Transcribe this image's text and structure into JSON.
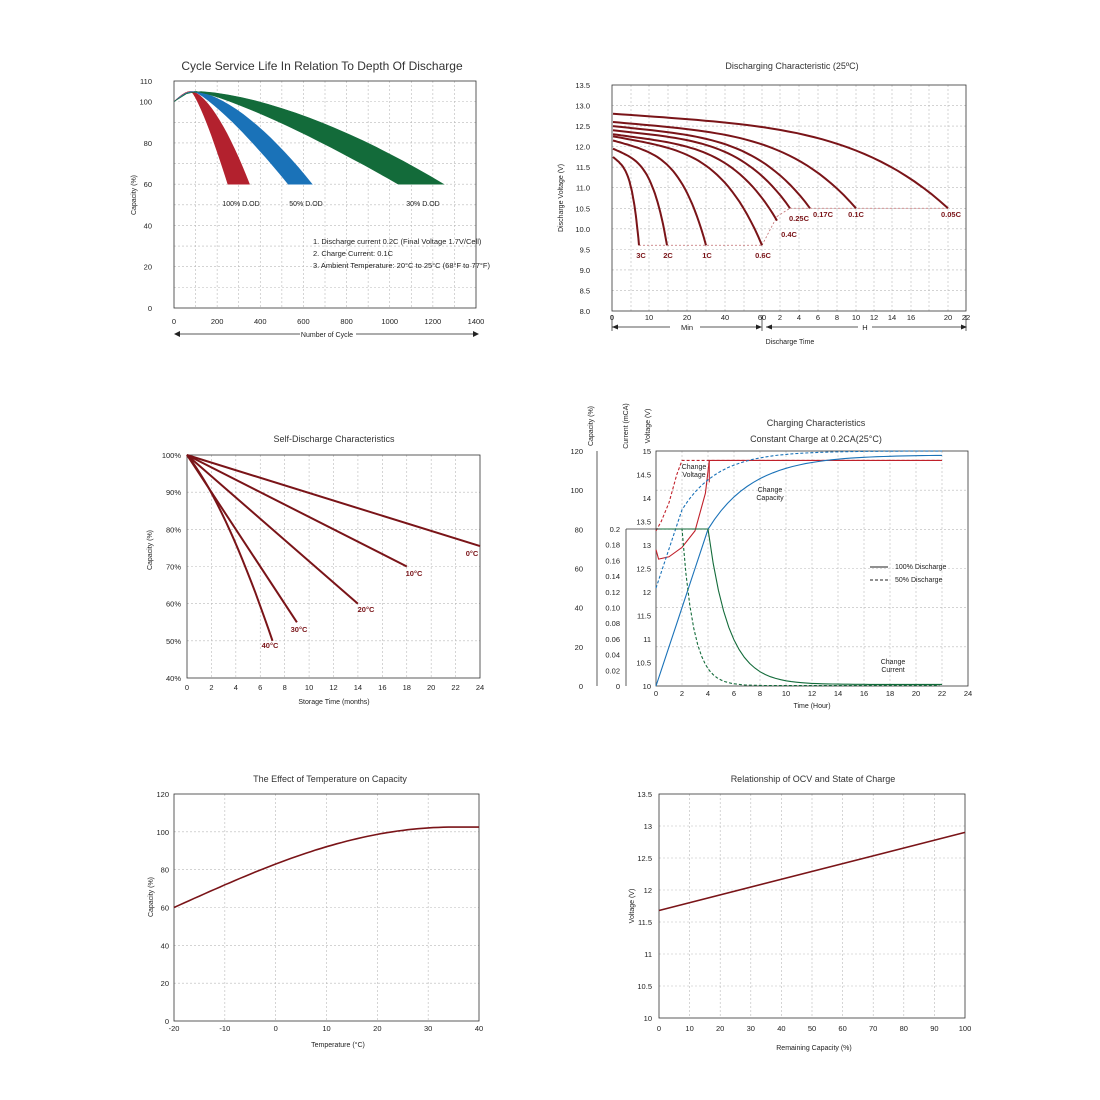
{
  "chart_data": [
    {
      "id": "cycle",
      "type": "area",
      "title": "Cycle Service Life In Relation To Depth Of Discharge",
      "xlabel": "Number of Cycle",
      "ylabel": "Capacity (%)",
      "xlim": [
        0,
        1400
      ],
      "ylim": [
        0,
        110
      ],
      "xticks": [
        0,
        200,
        400,
        600,
        800,
        1000,
        1200,
        1400
      ],
      "yticks": [
        0,
        20,
        40,
        60,
        80,
        100,
        110
      ],
      "notes": [
        "1.  Discharge current 0.2C (Final Voltage 1.7V/Cell)",
        "2.  Charge Current: 0.1C",
        "3.  Ambient Temperature: 20°C to 25°C (68°F to 77°F)"
      ],
      "series": [
        {
          "name": "100% D.OD",
          "color": "#b3212e",
          "band_end": [
            250,
            350
          ]
        },
        {
          "name": "50% D.OD",
          "color": "#1a72b8",
          "band_end": [
            530,
            640
          ]
        },
        {
          "name": "30% D.OD",
          "color": "#136b3a",
          "band_end": [
            1040,
            1250
          ]
        }
      ]
    },
    {
      "id": "discharge",
      "type": "line",
      "title": "Discharging Characteristic (25ºC)",
      "xlabel": "Discharge Time",
      "ylabel": "Discharge Voltage (V)",
      "ylim": [
        8.0,
        13.5
      ],
      "yticks": [
        "8.0",
        "8.5",
        "9.0",
        "9.5",
        "10.0",
        "10.5",
        "11.0",
        "11.5",
        "12.0",
        "12.5",
        "13.0",
        "13.5"
      ],
      "xticks_min": [
        "0",
        "10",
        "20",
        "40",
        "60"
      ],
      "xticks_h": [
        "2",
        "4",
        "6",
        "8",
        "10",
        "12",
        "14",
        "16",
        "20",
        "22"
      ],
      "xunit_min": "Min",
      "xunit_h": "H",
      "color": "#7a1418",
      "series": [
        {
          "name": "3C",
          "start_v": 11.75,
          "end_min": 7,
          "end_v": 9.6
        },
        {
          "name": "2C",
          "start_v": 11.95,
          "end_min": 14,
          "end_v": 9.6
        },
        {
          "name": "1C",
          "start_v": 12.15,
          "end_min": 30,
          "end_v": 9.6
        },
        {
          "name": "0.6C",
          "start_v": 12.25,
          "end_min": 58,
          "end_v": 9.6
        },
        {
          "name": "0.4C",
          "start_v": 12.3,
          "end_h": 2.3,
          "end_v": 10.2
        },
        {
          "name": "0.25C",
          "start_v": 12.4,
          "end_h": 3.3,
          "end_v": 10.5
        },
        {
          "name": "0.17C",
          "start_v": 12.5,
          "end_h": 5.2,
          "end_v": 10.5
        },
        {
          "name": "0.1C",
          "start_v": 12.6,
          "end_h": 10,
          "end_v": 10.5
        },
        {
          "name": "0.05C",
          "start_v": 12.8,
          "end_h": 20,
          "end_v": 10.5
        }
      ]
    },
    {
      "id": "selfdischarge",
      "type": "line",
      "title": "Self-Discharge Characteristics",
      "xlabel": "Storage Time (months)",
      "ylabel": "Capacity (%)",
      "xlim": [
        0,
        24
      ],
      "ylim": [
        40,
        100
      ],
      "xticks": [
        0,
        2,
        4,
        6,
        8,
        10,
        12,
        14,
        16,
        18,
        20,
        22,
        24
      ],
      "yticks": [
        "40%",
        "50%",
        "60%",
        "70%",
        "80%",
        "90%",
        "100%"
      ],
      "color": "#7a1418",
      "series": [
        {
          "name": "0°C",
          "x": [
            0,
            24
          ],
          "y": [
            100,
            75.5
          ]
        },
        {
          "name": "10°C",
          "x": [
            0,
            18
          ],
          "y": [
            100,
            70
          ]
        },
        {
          "name": "20°C",
          "x": [
            0,
            14
          ],
          "y": [
            100,
            60
          ]
        },
        {
          "name": "30°C",
          "x": [
            0,
            9
          ],
          "y": [
            100,
            55
          ]
        },
        {
          "name": "40°C",
          "x": [
            0,
            4,
            7
          ],
          "y": [
            100,
            70,
            50
          ]
        }
      ]
    },
    {
      "id": "charging",
      "type": "line",
      "title": "Charging Characteristics",
      "subtitle": "Constant Charge at 0.2CA(25°C)",
      "xlabel": "Time (Hour)",
      "ylabel_capacity": "Capacity (%)",
      "ylabel_current": "Current (mCA)",
      "ylabel_voltage": "Voltage (V)",
      "xticks": [
        0,
        2,
        4,
        6,
        8,
        10,
        12,
        14,
        16,
        18,
        20,
        22,
        24
      ],
      "capacity_ticks": [
        0,
        20,
        40,
        60,
        80,
        100,
        120
      ],
      "current_ticks": [
        "0",
        "0.02",
        "0.04",
        "0.06",
        "0.08",
        "0.10",
        "0.12",
        "0.14",
        "0.16",
        "0.18",
        "0.2"
      ],
      "voltage_ticks": [
        "10",
        "10.5",
        "11",
        "11.5",
        "12",
        "12.5",
        "13",
        "13.5",
        "14",
        "14.5",
        "15"
      ],
      "legend": [
        "100% Discharge",
        "50% Discharge"
      ],
      "annotations": [
        {
          "text": [
            "Change",
            "Voltage"
          ],
          "color": "#c0202a"
        },
        {
          "text": [
            "Change",
            "Capacity"
          ],
          "color": "#1a72b8"
        },
        {
          "text": [
            "Change",
            "Current"
          ],
          "color": "#136b3a"
        }
      ],
      "colors": {
        "voltage": "#c0202a",
        "capacity": "#1a72b8",
        "current": "#136b3a"
      }
    },
    {
      "id": "temperature",
      "type": "line",
      "title": "The Effect of Temperature on Capacity",
      "xlabel": "Temperature (°C)",
      "ylabel": "Capacity (%)",
      "xlim": [
        -20,
        40
      ],
      "ylim": [
        0,
        120
      ],
      "xticks": [
        -20,
        -10,
        0,
        10,
        20,
        30,
        40
      ],
      "yticks": [
        0,
        20,
        40,
        60,
        80,
        100,
        120
      ],
      "color": "#7a1418",
      "series": [
        {
          "x": [
            -20,
            -10,
            0,
            10,
            20,
            30,
            35,
            40
          ],
          "y": [
            60,
            74,
            85,
            93,
            99,
            102,
            102.5,
            102.5
          ]
        }
      ]
    },
    {
      "id": "ocv",
      "type": "line",
      "title": "Relationship of OCV and State of Charge",
      "xlabel": "Remaining Capacity (%)",
      "ylabel": "Voltage (V)",
      "xlim": [
        0,
        100
      ],
      "ylim": [
        10,
        13.5
      ],
      "xticks": [
        0,
        10,
        20,
        30,
        40,
        50,
        60,
        70,
        80,
        90,
        100
      ],
      "yticks": [
        "10",
        "10.5",
        "11",
        "11.5",
        "12",
        "12.5",
        "13",
        "13.5"
      ],
      "color": "#7a1418",
      "series": [
        {
          "x": [
            0,
            100
          ],
          "y": [
            11.68,
            12.9
          ]
        }
      ]
    }
  ]
}
